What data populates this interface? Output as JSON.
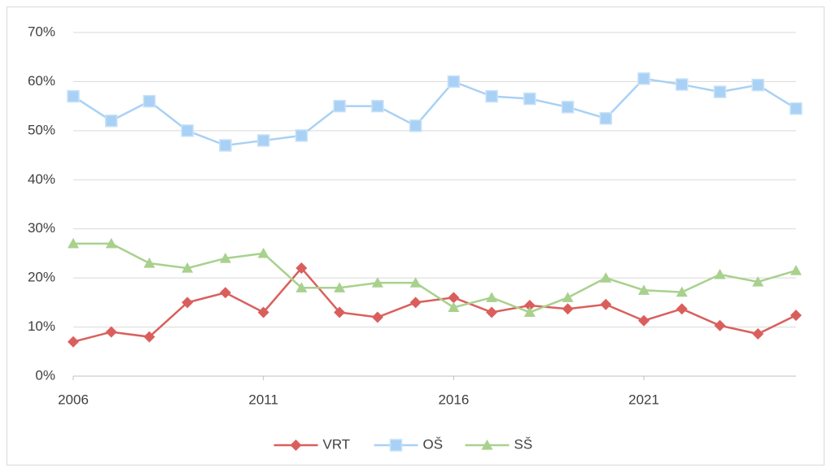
{
  "chart_data": {
    "type": "line",
    "x": [
      2006,
      2007,
      2008,
      2009,
      2010,
      2011,
      2012,
      2013,
      2014,
      2015,
      2016,
      2017,
      2018,
      2019,
      2020,
      2021,
      2022,
      2023,
      2024,
      2025
    ],
    "xlim": [
      2006,
      2025
    ],
    "xticks": [
      2006,
      2011,
      2016,
      2021
    ],
    "ylim": [
      0,
      70
    ],
    "yticks": [
      {
        "value": 0,
        "label": "0%"
      },
      {
        "value": 10,
        "label": "10%"
      },
      {
        "value": 20,
        "label": "20%"
      },
      {
        "value": 30,
        "label": "30%"
      },
      {
        "value": 40,
        "label": "40%"
      },
      {
        "value": 50,
        "label": "50%"
      },
      {
        "value": 60,
        "label": "60%"
      },
      {
        "value": 70,
        "label": "70%"
      }
    ],
    "grid": true,
    "legend": "bottom",
    "series": [
      {
        "name": "VRT",
        "color": "#da5f5c",
        "marker": "diamond",
        "values": [
          7,
          9,
          8,
          15,
          17,
          13,
          22,
          13,
          12,
          15,
          16,
          13,
          14.4,
          13.7,
          14.6,
          11.3,
          13.7,
          10.3,
          8.6,
          12.4
        ]
      },
      {
        "name": "OŠ",
        "color": "#a9d1f5",
        "marker": "square",
        "values": [
          57,
          52,
          56,
          50,
          47,
          48,
          49,
          55,
          55,
          51,
          60,
          57,
          56.5,
          54.8,
          52.5,
          60.6,
          59.4,
          57.9,
          59.3,
          54.5
        ]
      },
      {
        "name": "SŠ",
        "color": "#a8d18d",
        "marker": "triangle",
        "values": [
          27,
          27,
          23,
          22,
          24,
          25,
          18,
          18,
          19,
          19,
          14,
          16,
          13,
          16,
          20,
          17.5,
          17.1,
          20.7,
          19.2,
          21.5
        ]
      }
    ]
  }
}
